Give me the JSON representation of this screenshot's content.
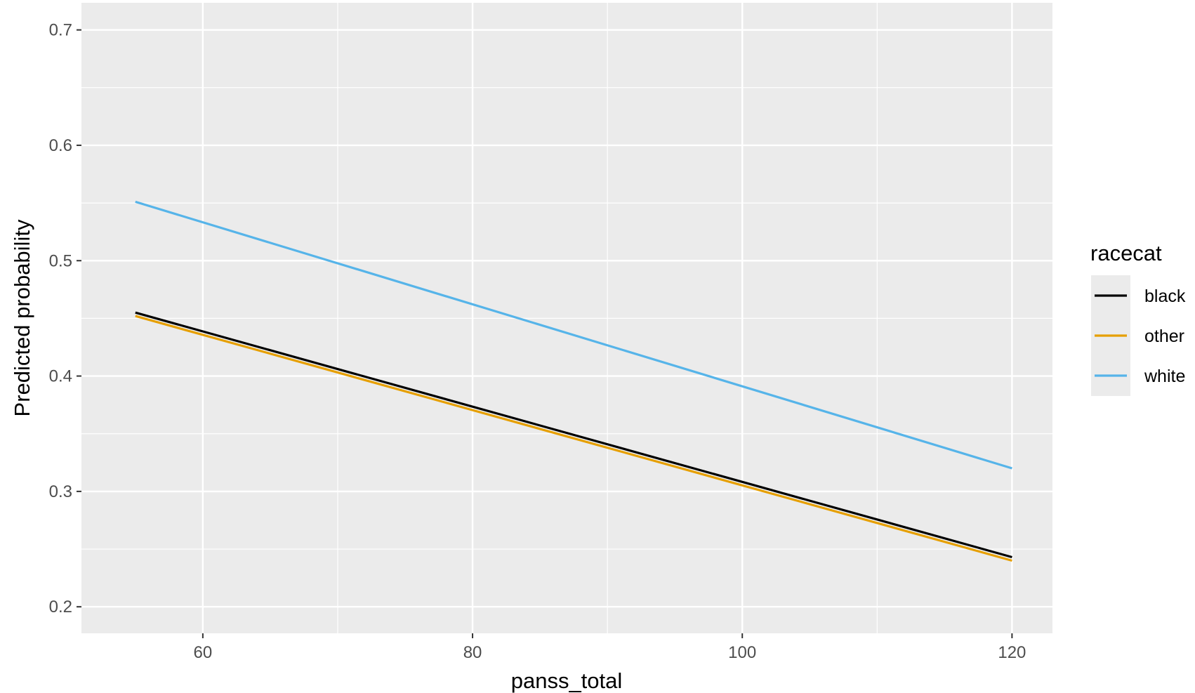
{
  "chart_data": {
    "type": "line",
    "title": "",
    "xlabel": "panss_total",
    "ylabel": "Predicted probability",
    "xlim": [
      51,
      123
    ],
    "ylim": [
      0.177,
      0.7235
    ],
    "x_ticks": [
      60,
      80,
      100,
      120
    ],
    "x_minor_ticks": [
      70,
      90,
      110
    ],
    "y_ticks": [
      0.2,
      0.3,
      0.4,
      0.5,
      0.6,
      0.7
    ],
    "y_tick_labels": [
      "0.2",
      "0.3",
      "0.4",
      "0.5",
      "0.6",
      "0.7"
    ],
    "y_minor_ticks": [
      0.25,
      0.35,
      0.45,
      0.55,
      0.65
    ],
    "x_tick_labels": [
      "60",
      "80",
      "100",
      "120"
    ],
    "grid": true,
    "legend": {
      "title": "racecat",
      "placement": "right"
    },
    "series": [
      {
        "name": "black",
        "color": "#000000",
        "x": [
          55,
          120
        ],
        "values": [
          0.455,
          0.243
        ]
      },
      {
        "name": "other",
        "color": "#E69F00",
        "x": [
          55,
          120
        ],
        "values": [
          0.452,
          0.24
        ]
      },
      {
        "name": "white",
        "color": "#56B4E9",
        "x": [
          55,
          120
        ],
        "values": [
          0.551,
          0.32
        ]
      }
    ]
  }
}
